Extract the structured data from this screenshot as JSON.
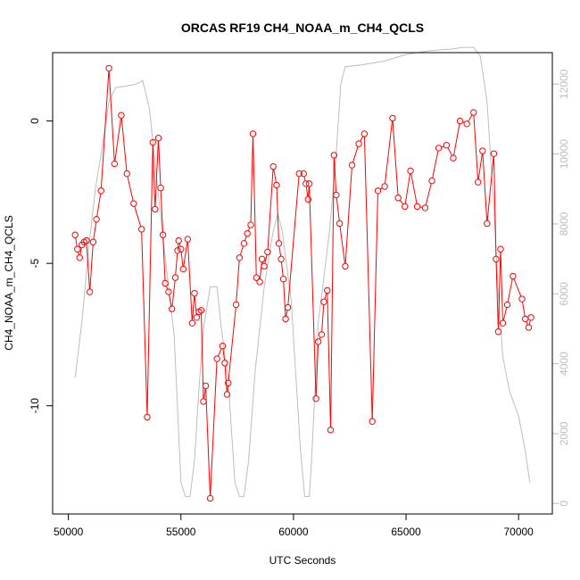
{
  "chart_data": {
    "type": "line",
    "title": "ORCAS RF19 CH4_NOAA_m_CH4_QCLS",
    "xlabel": "UTC Seconds",
    "ylabel": "CH4_NOAA_m_CH4_QCLS",
    "xlim": [
      49300,
      71500
    ],
    "ylim": [
      -13.8,
      2.4
    ],
    "y2lim": [
      -300,
      12900
    ],
    "x_ticks": [
      50000,
      55000,
      60000,
      65000,
      70000
    ],
    "y_ticks": [
      -10,
      -5,
      0
    ],
    "y2_ticks": [
      0,
      2000,
      4000,
      6000,
      8000,
      10000,
      12000
    ],
    "colors": {
      "primary": "#ff0000",
      "secondary": "#bdbdbd",
      "frame": "#000000"
    },
    "series": [
      {
        "type": "line+points",
        "values": [
          [
            50300,
            -4.0
          ],
          [
            50400,
            -4.5
          ],
          [
            50500,
            -4.8
          ],
          [
            50600,
            -4.35
          ],
          [
            50700,
            -4.25
          ],
          [
            50800,
            -4.2
          ],
          [
            50950,
            -6.0
          ],
          [
            51100,
            -4.25
          ],
          [
            51250,
            -3.45
          ],
          [
            51450,
            -2.45
          ],
          [
            51800,
            1.85
          ],
          [
            52050,
            -1.5
          ],
          [
            52350,
            0.2
          ],
          [
            52600,
            -1.85
          ],
          [
            52900,
            -2.9
          ],
          [
            53250,
            -3.8
          ],
          [
            53500,
            -10.4
          ],
          [
            53750,
            -0.75
          ],
          [
            53850,
            -3.1
          ],
          [
            54000,
            -0.6
          ],
          [
            54100,
            -2.35
          ],
          [
            54200,
            -4.0
          ],
          [
            54300,
            -5.7
          ],
          [
            54450,
            -6.0
          ],
          [
            54600,
            -6.6
          ],
          [
            54750,
            -5.5
          ],
          [
            54850,
            -4.55
          ],
          [
            54900,
            -4.2
          ],
          [
            55000,
            -4.5
          ],
          [
            55100,
            -5.2
          ],
          [
            55300,
            -4.15
          ],
          [
            55500,
            -7.1
          ],
          [
            55600,
            -6.05
          ],
          [
            55700,
            -6.9
          ],
          [
            55800,
            -6.7
          ],
          [
            55900,
            -6.65
          ],
          [
            56000,
            -9.85
          ],
          [
            56100,
            -9.3
          ],
          [
            56300,
            -13.25
          ],
          [
            56600,
            -8.35
          ],
          [
            56850,
            -7.9
          ],
          [
            56950,
            -8.5
          ],
          [
            57050,
            -9.6
          ],
          [
            57100,
            -9.2
          ],
          [
            57450,
            -6.45
          ],
          [
            57600,
            -4.8
          ],
          [
            57800,
            -4.3
          ],
          [
            57950,
            -3.95
          ],
          [
            58100,
            -3.65
          ],
          [
            58200,
            -0.45
          ],
          [
            58350,
            -5.5
          ],
          [
            58500,
            -5.65
          ],
          [
            58600,
            -4.85
          ],
          [
            58700,
            -5.1
          ],
          [
            58850,
            -4.6
          ],
          [
            59100,
            -1.6
          ],
          [
            59250,
            -2.25
          ],
          [
            59350,
            -4.3
          ],
          [
            59450,
            -4.85
          ],
          [
            59550,
            -5.55
          ],
          [
            59650,
            -6.95
          ],
          [
            59750,
            -6.55
          ],
          [
            60250,
            -1.85
          ],
          [
            60450,
            -1.85
          ],
          [
            60550,
            -2.2
          ],
          [
            60650,
            -2.75
          ],
          [
            60700,
            -2.2
          ],
          [
            61000,
            -9.75
          ],
          [
            61100,
            -7.75
          ],
          [
            61250,
            -7.5
          ],
          [
            61350,
            -6.35
          ],
          [
            61500,
            -5.95
          ],
          [
            61650,
            -10.85
          ],
          [
            61800,
            -1.2
          ],
          [
            61900,
            -2.6
          ],
          [
            62050,
            -3.6
          ],
          [
            62300,
            -5.1
          ],
          [
            62600,
            -1.55
          ],
          [
            62900,
            -0.8
          ],
          [
            63150,
            -0.45
          ],
          [
            63500,
            -10.55
          ],
          [
            63750,
            -2.45
          ],
          [
            64050,
            -2.3
          ],
          [
            64400,
            0.1
          ],
          [
            64650,
            -2.7
          ],
          [
            64950,
            -3.0
          ],
          [
            65200,
            -1.75
          ],
          [
            65500,
            -3.0
          ],
          [
            65850,
            -3.05
          ],
          [
            66150,
            -2.1
          ],
          [
            66450,
            -0.95
          ],
          [
            66800,
            -0.85
          ],
          [
            67100,
            -1.3
          ],
          [
            67400,
            0.0
          ],
          [
            67700,
            -0.1
          ],
          [
            68000,
            0.3
          ],
          [
            68200,
            -2.15
          ],
          [
            68400,
            -1.05
          ],
          [
            68600,
            -3.6
          ],
          [
            68900,
            -1.15
          ],
          [
            69000,
            -4.85
          ],
          [
            69100,
            -7.4
          ],
          [
            69200,
            -4.5
          ],
          [
            69300,
            -7.1
          ],
          [
            69500,
            -6.45
          ],
          [
            69750,
            -5.45
          ],
          [
            70150,
            -6.25
          ],
          [
            70300,
            -6.95
          ],
          [
            70450,
            -7.25
          ],
          [
            70550,
            -6.9
          ]
        ]
      },
      {
        "type": "line",
        "axis": "right",
        "values": [
          [
            50300,
            3600
          ],
          [
            50600,
            5200
          ],
          [
            50900,
            7300
          ],
          [
            51200,
            9000
          ],
          [
            51500,
            10200
          ],
          [
            51800,
            11500
          ],
          [
            52100,
            11900
          ],
          [
            52600,
            11950
          ],
          [
            53000,
            12000
          ],
          [
            53300,
            12100
          ],
          [
            53600,
            11300
          ],
          [
            54000,
            8800
          ],
          [
            54400,
            6500
          ],
          [
            54700,
            4800
          ],
          [
            55000,
            600
          ],
          [
            55200,
            200
          ],
          [
            55400,
            200
          ],
          [
            55600,
            1200
          ],
          [
            55800,
            3300
          ],
          [
            56000,
            5000
          ],
          [
            56300,
            6200
          ],
          [
            56600,
            6200
          ],
          [
            56800,
            5000
          ],
          [
            57100,
            3500
          ],
          [
            57400,
            600
          ],
          [
            57600,
            200
          ],
          [
            57800,
            200
          ],
          [
            58000,
            1200
          ],
          [
            58300,
            3800
          ],
          [
            58700,
            6200
          ],
          [
            59100,
            7800
          ],
          [
            59300,
            8300
          ],
          [
            59500,
            7800
          ],
          [
            59900,
            5800
          ],
          [
            60300,
            1600
          ],
          [
            60500,
            200
          ],
          [
            60700,
            200
          ],
          [
            60800,
            1200
          ],
          [
            61100,
            5200
          ],
          [
            61300,
            6200
          ],
          [
            61600,
            7800
          ],
          [
            61900,
            10000
          ],
          [
            62100,
            12000
          ],
          [
            62300,
            12500
          ],
          [
            63000,
            12550
          ],
          [
            63500,
            12600
          ],
          [
            64000,
            12650
          ],
          [
            64500,
            12750
          ],
          [
            65000,
            12850
          ],
          [
            65500,
            12900
          ],
          [
            66000,
            12950
          ],
          [
            66500,
            12980
          ],
          [
            67000,
            13000
          ],
          [
            67500,
            13050
          ],
          [
            68000,
            13050
          ],
          [
            68300,
            12800
          ],
          [
            68600,
            11500
          ],
          [
            68900,
            8500
          ],
          [
            69100,
            6000
          ],
          [
            69300,
            4200
          ],
          [
            69600,
            3200
          ],
          [
            70000,
            2500
          ],
          [
            70300,
            1500
          ],
          [
            70500,
            600
          ]
        ]
      }
    ]
  }
}
